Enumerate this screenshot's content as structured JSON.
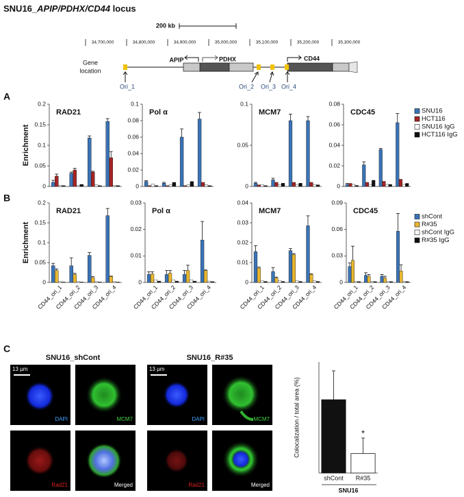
{
  "locus": {
    "title_parts": [
      "SNU16_",
      "APIP/PDHX/CD44",
      " locus"
    ],
    "scale": "200 kb",
    "coordinates": [
      "34,700,000",
      "34,800,000",
      "34,900,000",
      "35,000,000",
      "35,100,000",
      "35,200,000",
      "35,300,000"
    ],
    "track_label": [
      "Gene",
      "location"
    ],
    "genes": [
      "APIP",
      "PDHX",
      "CD44"
    ],
    "origins": [
      "Ori_1",
      "Ori_2",
      "Ori_3",
      "Ori_4"
    ]
  },
  "panel_labels": [
    "A",
    "B",
    "C"
  ],
  "chart_data": [
    {
      "type": "bar",
      "title": "RAD21",
      "ylabel": "Enrichment",
      "categories": [
        null,
        null,
        null,
        null
      ],
      "ylim": [
        0,
        0.2
      ],
      "yticks": [
        0,
        0.05,
        0.1,
        0.15,
        0.2
      ],
      "series": [
        {
          "color": "#3b73b5",
          "values": [
            0.01,
            0.032,
            0.118,
            0.158
          ],
          "errors": [
            0.005,
            0.003,
            0.005,
            0.007
          ]
        },
        {
          "color": "#a52424",
          "values": [
            0.025,
            0.04,
            0.035,
            0.07
          ],
          "errors": [
            0.005,
            0.004,
            0.002,
            0.015
          ]
        },
        {
          "color": "#ffffff",
          "values": [
            0.003,
            0.002,
            0.004,
            0.003
          ]
        },
        {
          "color": "#111111",
          "values": [
            0.002,
            0.005,
            0.002,
            0.002
          ]
        }
      ]
    },
    {
      "type": "bar",
      "title": "Pol α",
      "categories": [
        null,
        null,
        null,
        null
      ],
      "ylim": [
        0,
        0.1
      ],
      "yticks": [
        0,
        0.02,
        0.04,
        0.06,
        0.08,
        0.1
      ],
      "series": [
        {
          "color": "#3b73b5",
          "values": [
            0.006,
            0.004,
            0.06,
            0.082
          ],
          "errors": [
            0.001,
            0.001,
            0.01,
            0.008
          ]
        },
        {
          "color": "#a52424",
          "values": [
            0.001,
            0.001,
            0.001,
            0.005
          ]
        },
        {
          "color": "#ffffff",
          "values": [
            0.003,
            0.002,
            0.002,
            0.002
          ]
        },
        {
          "color": "#111111",
          "values": [
            0.001,
            0.005,
            0.006,
            0.001
          ]
        }
      ]
    },
    {
      "type": "bar",
      "title": "MCM7",
      "categories": [
        null,
        null,
        null,
        null
      ],
      "ylim": [
        0,
        0.1
      ],
      "yticks": [
        0,
        0.05,
        0.1
      ],
      "series": [
        {
          "color": "#3b73b5",
          "values": [
            0.004,
            0.008,
            0.08,
            0.08
          ],
          "errors": [
            0.001,
            0.002,
            0.008,
            0.005
          ]
        },
        {
          "color": "#a52424",
          "values": [
            0.002,
            0.005,
            0.005,
            0.005
          ]
        },
        {
          "color": "#ffffff",
          "values": [
            0.002,
            0.002,
            0.002,
            0.002
          ]
        },
        {
          "color": "#111111",
          "values": [
            0.001,
            0.004,
            0.004,
            0.002
          ]
        }
      ]
    },
    {
      "type": "bar",
      "title": "CDC45",
      "categories": [
        null,
        null,
        null,
        null
      ],
      "ylim": [
        0,
        0.08
      ],
      "yticks": [
        0,
        0.02,
        0.04,
        0.06,
        0.08
      ],
      "series": [
        {
          "name": "SNU16",
          "color": "#3b73b5",
          "values": [
            0.002,
            0.021,
            0.036,
            0.062
          ],
          "errors": [
            0.001,
            0.003,
            0.001,
            0.009
          ]
        },
        {
          "name": "HCT116",
          "color": "#a52424",
          "values": [
            0.003,
            0.004,
            0.005,
            0.007
          ]
        },
        {
          "name": "SNU16 IgG",
          "color": "#ffffff",
          "values": [
            0.002,
            0.002,
            0.002,
            0.002
          ]
        },
        {
          "name": "HCT116 IgG",
          "color": "#111111",
          "values": [
            0.001,
            0.006,
            0.002,
            0.003
          ]
        }
      ]
    },
    {
      "type": "bar",
      "title": "RAD21",
      "ylabel": "Enrichment",
      "categories": [
        "CD44_ori_1",
        "CD44_ori_2",
        "CD44_ori_3",
        "CD44_ori_4"
      ],
      "ylim": [
        0,
        0.2
      ],
      "yticks": [
        0,
        0.05,
        0.1,
        0.15,
        0.2
      ],
      "series": [
        {
          "color": "#3b73b5",
          "values": [
            0.042,
            0.042,
            0.068,
            0.168
          ],
          "errors": [
            0.006,
            0.02,
            0.007,
            0.018
          ]
        },
        {
          "color": "#e8b630",
          "values": [
            0.03,
            0.02,
            0.012,
            0.015
          ],
          "errors": [
            0.004,
            0.003,
            0.003,
            0.001
          ]
        },
        {
          "color": "#ffffff",
          "values": [
            0.002,
            0.002,
            0.002,
            0.002
          ]
        },
        {
          "color": "#111111",
          "values": [
            0.001,
            0.001,
            0.001,
            0.001
          ]
        }
      ]
    },
    {
      "type": "bar",
      "title": "Pol α",
      "categories": [
        "CD44_ori_1",
        "CD44_ori_2",
        "CD44_ori_3",
        "CD44_ori_4"
      ],
      "ylim": [
        0,
        0.03
      ],
      "yticks": [
        0,
        0.01,
        0.02,
        0.03
      ],
      "series": [
        {
          "color": "#3b73b5",
          "values": [
            0.003,
            0.003,
            0.003,
            0.016
          ],
          "errors": [
            0.001,
            0.0015,
            0.0015,
            0.007
          ]
        },
        {
          "color": "#e8b630",
          "values": [
            0.0032,
            0.0035,
            0.0045,
            0.0045
          ],
          "errors": [
            0.0008,
            0.001,
            0.002,
            0.0002
          ]
        },
        {
          "color": "#ffffff",
          "values": [
            0.001,
            0.001,
            0.001,
            0.0005
          ]
        },
        {
          "color": "#111111",
          "values": [
            0.0005,
            0.0005,
            0.0005,
            0.0003
          ]
        }
      ]
    },
    {
      "type": "bar",
      "title": "MCM7",
      "categories": [
        "CD44_ori_1",
        "CD44_ori_2",
        "CD44_ori_3",
        "CD44_ori_4"
      ],
      "ylim": [
        0,
        0.04
      ],
      "yticks": [
        0,
        0.01,
        0.02,
        0.03,
        0.04
      ],
      "series": [
        {
          "color": "#3b73b5",
          "values": [
            0.0155,
            0.0055,
            0.016,
            0.0285
          ],
          "errors": [
            0.003,
            0.002,
            0.001,
            0.005
          ]
        },
        {
          "color": "#e8b630",
          "values": [
            0.0072,
            0.0022,
            0.014,
            0.004
          ],
          "errors": [
            0.0005,
            0.0005,
            0.0005,
            0.0003
          ]
        },
        {
          "color": "#ffffff",
          "values": [
            0.0008,
            0.0008,
            0.0008,
            0.0008
          ]
        },
        {
          "color": "#111111",
          "values": [
            0.0005,
            0.0005,
            0.0005,
            0.0005
          ]
        }
      ]
    },
    {
      "type": "bar",
      "title": "CDC45",
      "categories": [
        "CD44_ori_1",
        "CD44_ori_2",
        "CD44_ori_3",
        "CD44_ori_4"
      ],
      "ylim": [
        0,
        0.09
      ],
      "yticks": [
        0,
        0.03,
        0.06,
        0.09
      ],
      "series": [
        {
          "name": "shCont",
          "color": "#3b73b5",
          "values": [
            0.018,
            0.008,
            0.007,
            0.058
          ],
          "errors": [
            0.004,
            0.003,
            0.002,
            0.02
          ]
        },
        {
          "name": "R#35",
          "color": "#e8b630",
          "values": [
            0.025,
            0.007,
            0.005,
            0.013
          ],
          "errors": [
            0.016,
            0.002,
            0.002,
            0.007
          ]
        },
        {
          "name": "shCont IgG",
          "color": "#ffffff",
          "values": [
            0.001,
            0.001,
            0.001,
            0.001
          ]
        },
        {
          "name": "R#35 IgG",
          "color": "#111111",
          "values": [
            0.001,
            0.001,
            0.001,
            0.001
          ]
        }
      ]
    },
    {
      "type": "bar",
      "ylabel": "Colocalization / total area (%)",
      "categories": [
        "shCont",
        "R#35"
      ],
      "xlabel": "SNU16",
      "values": [
        1.32,
        0.35
      ],
      "errors": [
        0.52,
        0.28
      ],
      "colors": [
        "#111111",
        "#ffffff"
      ],
      "ylim": [
        0,
        2
      ],
      "annotation": "*"
    }
  ],
  "images": [
    {
      "title": "SNU16_shCont",
      "scale": "13 µm",
      "channels": [
        "DAPI",
        "MCM7",
        "Rad21",
        "Merged"
      ]
    },
    {
      "title": "SNU16_R#35",
      "scale": "13 µm",
      "channels": [
        "DAPI",
        "MCM7",
        "Rad21",
        "Merged"
      ]
    }
  ]
}
